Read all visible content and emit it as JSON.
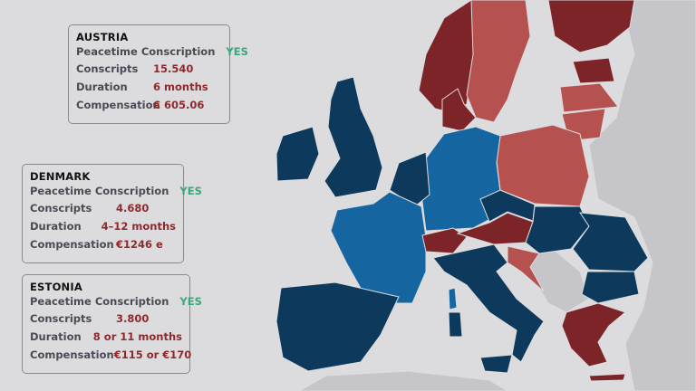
{
  "labels": {
    "peacetime": "Peacetime Conscription",
    "conscripts": "Conscripts",
    "duration": "Duration",
    "compensation": "Compensation"
  },
  "cards": [
    {
      "country": "AUSTRIA",
      "peacetime": "YES",
      "conscripts": "15.540",
      "duration": "6 months",
      "compensation": "€ 605.06"
    },
    {
      "country": "DENMARK",
      "peacetime": "YES",
      "conscripts": "4.680",
      "duration": "4–12 months",
      "compensation": "€1246 e"
    },
    {
      "country": "ESTONIA",
      "peacetime": "YES",
      "conscripts": "3.800",
      "duration": "8 or 11 months",
      "compensation": "€115 or €170"
    }
  ],
  "colors": {
    "background": "#dcdcde",
    "no_data": "#c6c6ca",
    "navy": "#0d3a5c",
    "blue": "#1565a0",
    "dark_red": "#7d2428",
    "light_red": "#b5524f",
    "yes": "#3aa87a"
  }
}
